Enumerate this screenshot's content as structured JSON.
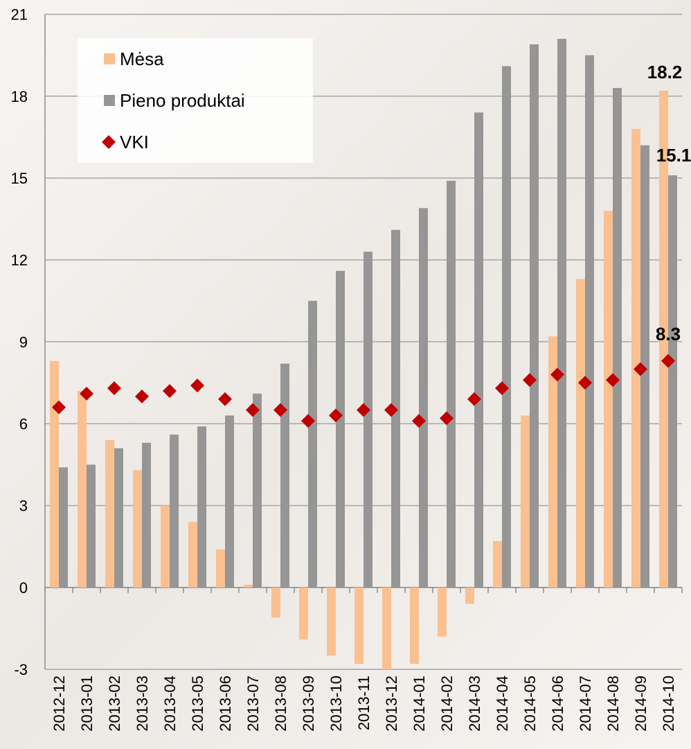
{
  "chart_data": {
    "type": "bar_line",
    "categories": [
      "2012-12",
      "2013-01",
      "2013-02",
      "2013-03",
      "2013-04",
      "2013-05",
      "2013-06",
      "2013-07",
      "2013-08",
      "2013-09",
      "2013-10",
      "2013-11",
      "2013-12",
      "2014-01",
      "2014-02",
      "2014-03",
      "2014-04",
      "2014-05",
      "2014-06",
      "2014-07",
      "2014-08",
      "2014-09",
      "2014-10"
    ],
    "series": [
      {
        "name": "Mėsa",
        "type": "bar",
        "color": "#fac090",
        "values": [
          8.3,
          7.2,
          5.4,
          4.3,
          3.0,
          2.4,
          1.4,
          0.1,
          -1.1,
          -1.9,
          -2.5,
          -2.8,
          -3.0,
          -2.8,
          -1.8,
          -0.6,
          1.7,
          6.3,
          9.2,
          11.3,
          13.8,
          16.8,
          18.2
        ]
      },
      {
        "name": "Pieno produktai",
        "type": "bar",
        "color": "#969696",
        "values": [
          4.4,
          4.5,
          5.1,
          5.3,
          5.6,
          5.9,
          6.3,
          7.1,
          8.2,
          10.5,
          11.6,
          12.3,
          13.1,
          13.9,
          14.9,
          17.4,
          19.1,
          19.9,
          20.1,
          19.5,
          18.3,
          16.2,
          15.1
        ]
      },
      {
        "name": "VKI",
        "type": "marker",
        "color": "#c00000",
        "values": [
          6.6,
          7.1,
          7.3,
          7.0,
          7.2,
          7.4,
          6.9,
          6.5,
          6.5,
          6.1,
          6.3,
          6.5,
          6.5,
          6.1,
          6.2,
          6.9,
          7.3,
          7.6,
          7.8,
          7.5,
          7.6,
          8.0,
          8.3
        ]
      }
    ],
    "ylim": [
      -3,
      21
    ],
    "yticks": [
      -3,
      0,
      3,
      6,
      9,
      12,
      15,
      18,
      21
    ],
    "grid": true,
    "legend": "top-left"
  }
}
